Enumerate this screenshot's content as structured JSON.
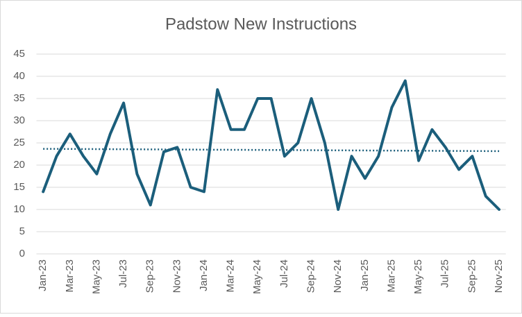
{
  "chart_data": {
    "type": "line",
    "title": "Padstow New Instructions",
    "categories": [
      "Jan-23",
      null,
      "Mar-23",
      null,
      "May-23",
      null,
      "Jul-23",
      null,
      "Sep-23",
      null,
      "Nov-23",
      null,
      "Jan-24",
      null,
      "Mar-24",
      null,
      "May-24",
      null,
      "Jul-24",
      null,
      "Sep-24",
      null,
      "Nov-24",
      null,
      "Jan-25",
      null,
      "Mar-25",
      null,
      "May-25",
      null,
      "Jul-25",
      null,
      "Sep-25",
      null,
      "Nov-25"
    ],
    "values": [
      14,
      22,
      27,
      22,
      18,
      27,
      34,
      18,
      11,
      23,
      24,
      15,
      14,
      37,
      28,
      28,
      35,
      35,
      22,
      25,
      35,
      25,
      10,
      22,
      17,
      22,
      33,
      39,
      21,
      28,
      24,
      19,
      22,
      13,
      10
    ],
    "color": "#1b5e7b",
    "trendline": "linear",
    "ylim": [
      0,
      45
    ],
    "yticks": [
      0,
      5,
      10,
      15,
      20,
      25,
      30,
      35,
      40,
      45
    ],
    "grid": true
  }
}
